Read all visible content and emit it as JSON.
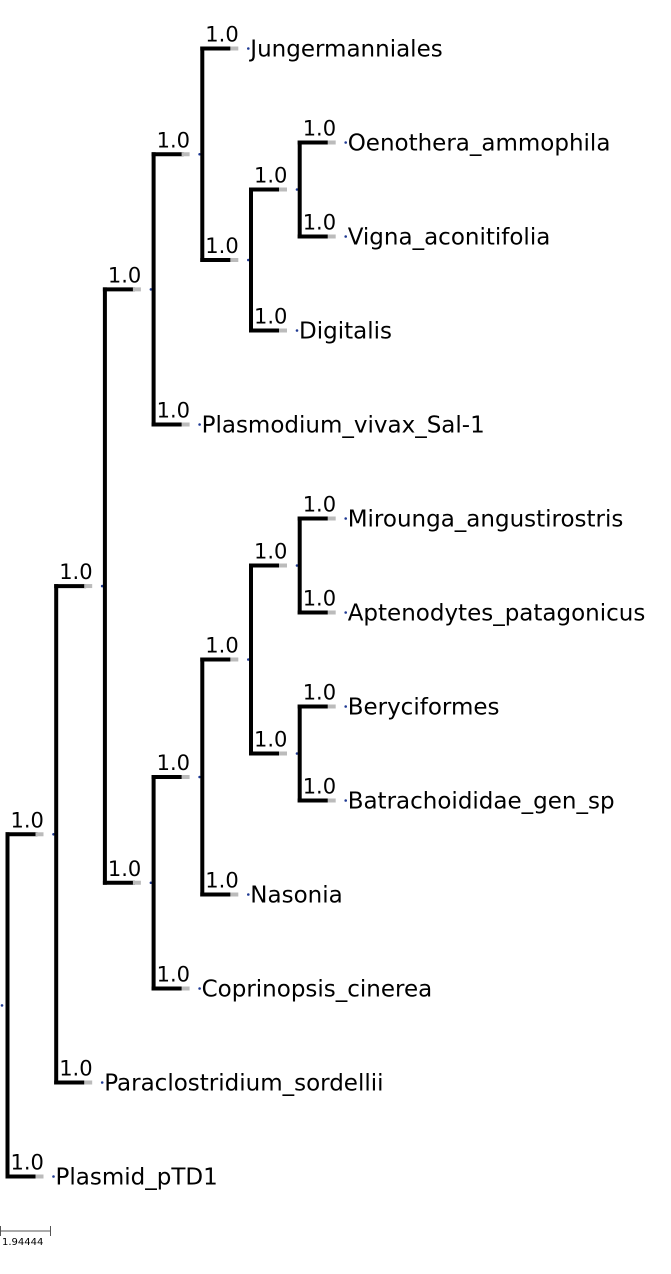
{
  "tree": {
    "support": "1.0",
    "children": [
      {
        "support": "1.0",
        "children": [
          {
            "support": "1.0",
            "children": [
              {
                "support": "1.0",
                "children": [
                  {
                    "support": "1.0",
                    "children": [
                      {
                        "support": "1.0",
                        "label": "Jungermanniales"
                      },
                      {
                        "support": "1.0",
                        "children": [
                          {
                            "support": "1.0",
                            "children": [
                              {
                                "support": "1.0",
                                "label": "Oenothera_ammophila"
                              },
                              {
                                "support": "1.0",
                                "label": "Vigna_aconitifolia"
                              }
                            ]
                          },
                          {
                            "support": "1.0",
                            "label": "Digitalis"
                          }
                        ]
                      }
                    ]
                  },
                  {
                    "support": "1.0",
                    "label": "Plasmodium_vivax_Sal-1"
                  }
                ]
              },
              {
                "support": "1.0",
                "children": [
                  {
                    "support": "1.0",
                    "children": [
                      {
                        "support": "1.0",
                        "children": [
                          {
                            "support": "1.0",
                            "children": [
                              {
                                "support": "1.0",
                                "label": "Mirounga_angustirostris"
                              },
                              {
                                "support": "1.0",
                                "label": "Aptenodytes_patagonicus"
                              }
                            ]
                          },
                          {
                            "support": "1.0",
                            "children": [
                              {
                                "support": "1.0",
                                "label": "Beryciformes"
                              },
                              {
                                "support": "1.0",
                                "label": "Batrachoididae_gen_sp"
                              }
                            ]
                          }
                        ]
                      },
                      {
                        "support": "1.0",
                        "label": "Nasonia"
                      }
                    ]
                  },
                  {
                    "support": "1.0",
                    "label": "Coprinopsis_cinerea"
                  }
                ]
              }
            ]
          },
          {
            "support": "1.0",
            "label": "Paraclostridium_sordellii"
          }
        ]
      },
      {
        "support": "1.0",
        "label": "Plasmid_pTD1"
      }
    ]
  },
  "scale_bar": {
    "label": "1.94444"
  },
  "colors": {
    "branch": "#000000",
    "branch_fade": "#bbbbbb",
    "node_dot": "#1f3a93"
  }
}
